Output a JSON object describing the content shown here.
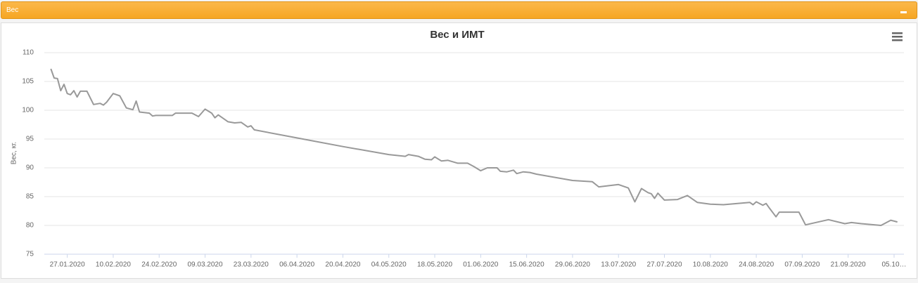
{
  "panel": {
    "title": "Вес"
  },
  "chart_data": {
    "type": "line",
    "title": "Вес и ИМТ",
    "y_label": "Вес, кг.",
    "color": "#999999",
    "grid": true,
    "ylim": [
      75,
      110
    ],
    "yticks": [
      75,
      80,
      85,
      90,
      95,
      100,
      105,
      110
    ],
    "xlim": [
      "2020-01-20",
      "2020-10-08"
    ],
    "xticks": [
      {
        "value": "2020-01-27",
        "label": "27.01.2020"
      },
      {
        "value": "2020-02-10",
        "label": "10.02.2020"
      },
      {
        "value": "2020-02-24",
        "label": "24.02.2020"
      },
      {
        "value": "2020-03-09",
        "label": "09.03.2020"
      },
      {
        "value": "2020-03-23",
        "label": "23.03.2020"
      },
      {
        "value": "2020-04-06",
        "label": "06.04.2020"
      },
      {
        "value": "2020-04-20",
        "label": "20.04.2020"
      },
      {
        "value": "2020-05-04",
        "label": "04.05.2020"
      },
      {
        "value": "2020-05-18",
        "label": "18.05.2020"
      },
      {
        "value": "2020-06-01",
        "label": "01.06.2020"
      },
      {
        "value": "2020-06-15",
        "label": "15.06.2020"
      },
      {
        "value": "2020-06-29",
        "label": "29.06.2020"
      },
      {
        "value": "2020-07-13",
        "label": "13.07.2020"
      },
      {
        "value": "2020-07-27",
        "label": "27.07.2020"
      },
      {
        "value": "2020-08-10",
        "label": "10.08.2020"
      },
      {
        "value": "2020-08-24",
        "label": "24.08.2020"
      },
      {
        "value": "2020-09-07",
        "label": "07.09.2020"
      },
      {
        "value": "2020-09-21",
        "label": "21.09.2020"
      },
      {
        "value": "2020-10-05",
        "label": "05.10…"
      }
    ],
    "x": [
      "2020-01-22",
      "2020-01-23",
      "2020-01-24",
      "2020-01-25",
      "2020-01-26",
      "2020-01-27",
      "2020-01-28",
      "2020-01-29",
      "2020-01-30",
      "2020-01-31",
      "2020-02-02",
      "2020-02-04",
      "2020-02-06",
      "2020-02-07",
      "2020-02-08",
      "2020-02-10",
      "2020-02-12",
      "2020-02-14",
      "2020-02-16",
      "2020-02-17",
      "2020-02-18",
      "2020-02-21",
      "2020-02-22",
      "2020-02-23",
      "2020-02-28",
      "2020-02-29",
      "2020-03-05",
      "2020-03-07",
      "2020-03-09",
      "2020-03-11",
      "2020-03-12",
      "2020-03-13",
      "2020-03-16",
      "2020-03-18",
      "2020-03-20",
      "2020-03-22",
      "2020-03-23",
      "2020-03-24",
      "2020-04-06",
      "2020-04-20",
      "2020-05-04",
      "2020-05-09",
      "2020-05-10",
      "2020-05-13",
      "2020-05-15",
      "2020-05-17",
      "2020-05-18",
      "2020-05-20",
      "2020-05-22",
      "2020-05-25",
      "2020-05-28",
      "2020-05-30",
      "2020-06-01",
      "2020-06-03",
      "2020-06-06",
      "2020-06-07",
      "2020-06-09",
      "2020-06-11",
      "2020-06-12",
      "2020-06-14",
      "2020-06-16",
      "2020-06-18",
      "2020-06-29",
      "2020-07-05",
      "2020-07-07",
      "2020-07-13",
      "2020-07-16",
      "2020-07-18",
      "2020-07-20",
      "2020-07-22",
      "2020-07-23",
      "2020-07-24",
      "2020-07-25",
      "2020-07-27",
      "2020-07-31",
      "2020-08-03",
      "2020-08-06",
      "2020-08-10",
      "2020-08-14",
      "2020-08-22",
      "2020-08-23",
      "2020-08-24",
      "2020-08-26",
      "2020-08-27",
      "2020-08-28",
      "2020-08-30",
      "2020-08-31",
      "2020-09-06",
      "2020-09-08",
      "2020-09-15",
      "2020-09-20",
      "2020-09-22",
      "2020-09-25",
      "2020-10-01",
      "2020-10-04",
      "2020-10-06"
    ],
    "values": [
      107.2,
      105.6,
      105.5,
      103.4,
      104.5,
      102.9,
      102.7,
      103.4,
      102.3,
      103.3,
      103.3,
      101.0,
      101.2,
      100.9,
      101.4,
      102.9,
      102.5,
      100.4,
      100.1,
      101.6,
      99.7,
      99.5,
      99.0,
      99.1,
      99.1,
      99.5,
      99.5,
      98.9,
      100.2,
      99.5,
      98.7,
      99.2,
      98.0,
      97.8,
      97.9,
      97.1,
      97.3,
      96.6,
      95.2,
      93.7,
      92.3,
      92.0,
      92.3,
      92.0,
      91.5,
      91.4,
      91.9,
      91.2,
      91.3,
      90.8,
      90.8,
      90.2,
      89.5,
      90.0,
      90.0,
      89.4,
      89.3,
      89.6,
      89.0,
      89.3,
      89.2,
      88.9,
      87.8,
      87.6,
      86.7,
      87.1,
      86.5,
      84.1,
      86.4,
      85.7,
      85.5,
      84.7,
      85.6,
      84.4,
      84.5,
      85.2,
      84.0,
      83.7,
      83.6,
      84.0,
      83.6,
      84.1,
      83.5,
      83.8,
      83.0,
      81.5,
      82.3,
      82.3,
      80.1,
      81.0,
      80.3,
      80.5,
      80.3,
      80.0,
      80.9,
      80.6
    ]
  }
}
